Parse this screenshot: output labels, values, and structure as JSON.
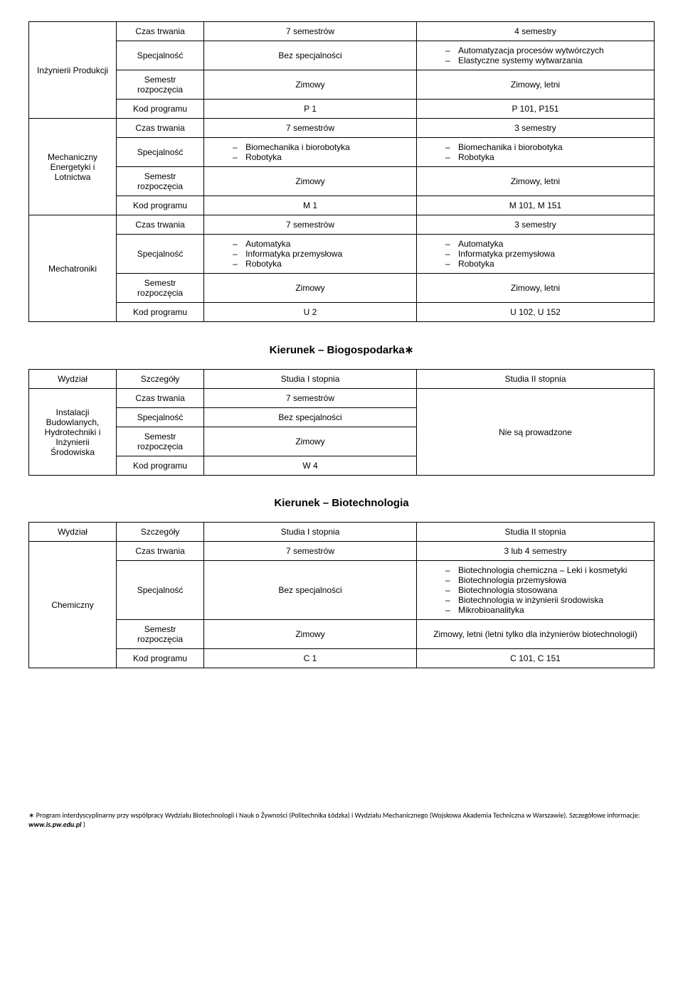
{
  "labels": {
    "czas": "Czas trwania",
    "spec": "Specjalność",
    "sem": "Semestr rozpoczęcia",
    "kod": "Kod programu",
    "wydzial": "Wydział",
    "szczegoly": "Szczegóły",
    "s1": "Studia I stopnia",
    "s2": "Studia II stopnia"
  },
  "t1": {
    "r1": {
      "dept": "Inżynierii Produkcji",
      "czas_a": "7 semestrów",
      "czas_b": "4 semestry",
      "spec_a": "Bez specjalności",
      "spec_b": [
        "Automatyzacja procesów wytwórczych",
        "Elastyczne systemy wytwarzania"
      ],
      "sem_a": "Zimowy",
      "sem_b": "Zimowy, letni",
      "kod_a": "P 1",
      "kod_b": "P 101, P151"
    },
    "r2": {
      "dept": "Mechaniczny Energetyki i Lotnictwa",
      "czas_a": "7 semestrów",
      "czas_b": "3 semestry",
      "spec_a": [
        "Biomechanika i biorobotyka",
        "Robotyka"
      ],
      "spec_b": [
        "Biomechanika i biorobotyka",
        "Robotyka"
      ],
      "sem_a": "Zimowy",
      "sem_b": "Zimowy, letni",
      "kod_a": "M 1",
      "kod_b": "M 101, M 151"
    },
    "r3": {
      "dept": "Mechatroniki",
      "czas_a": "7 semestrów",
      "czas_b": "3 semestry",
      "spec_a": [
        "Automatyka",
        "Informatyka przemysłowa",
        "Robotyka"
      ],
      "spec_b": [
        "Automatyka",
        "Informatyka przemysłowa",
        "Robotyka"
      ],
      "sem_a": "Zimowy",
      "sem_b": "Zimowy, letni",
      "kod_a": "U 2",
      "kod_b": "U 102, U 152"
    }
  },
  "h2a": "Kierunek – Biogospodarka",
  "t2": {
    "dept": "Instalacji Budowlanych, Hydrotechniki i Inżynierii Środowiska",
    "czas_a": "7 semestrów",
    "spec_a": "Bez specjalności",
    "sem_a": "Zimowy",
    "kod_a": "W 4",
    "s2_merged": "Nie są prowadzone"
  },
  "h2b": "Kierunek – Biotechnologia",
  "t3": {
    "dept": "Chemiczny",
    "czas_a": "7 semestrów",
    "czas_b": "3 lub 4 semestry",
    "spec_a": "Bez specjalności",
    "spec_b": [
      "Biotechnologia chemiczna – Leki i kosmetyki",
      "Biotechnologia przemysłowa",
      "Biotechnologia stosowana",
      "Biotechnologia w inżynierii środowiska",
      "Mikrobioanalityka"
    ],
    "sem_a": "Zimowy",
    "sem_b": "Zimowy, letni (letni tylko dla inżynierów biotechnologii)",
    "kod_a": "C 1",
    "kod_b": "C 101, C 151"
  },
  "footnote": {
    "marker": "∗",
    "text": "Program interdyscyplinarny przy współpracy Wydziału Biotechnologii i Nauk o Żywności (Politechnika Łódzka) i Wydziału Mechanicznego (Wojskowa Akademia Techniczna w Warszawie). Szczegółowe informacje: ",
    "link": "www.is.pw.edu.pl",
    "tail": " )"
  },
  "star": "∗"
}
